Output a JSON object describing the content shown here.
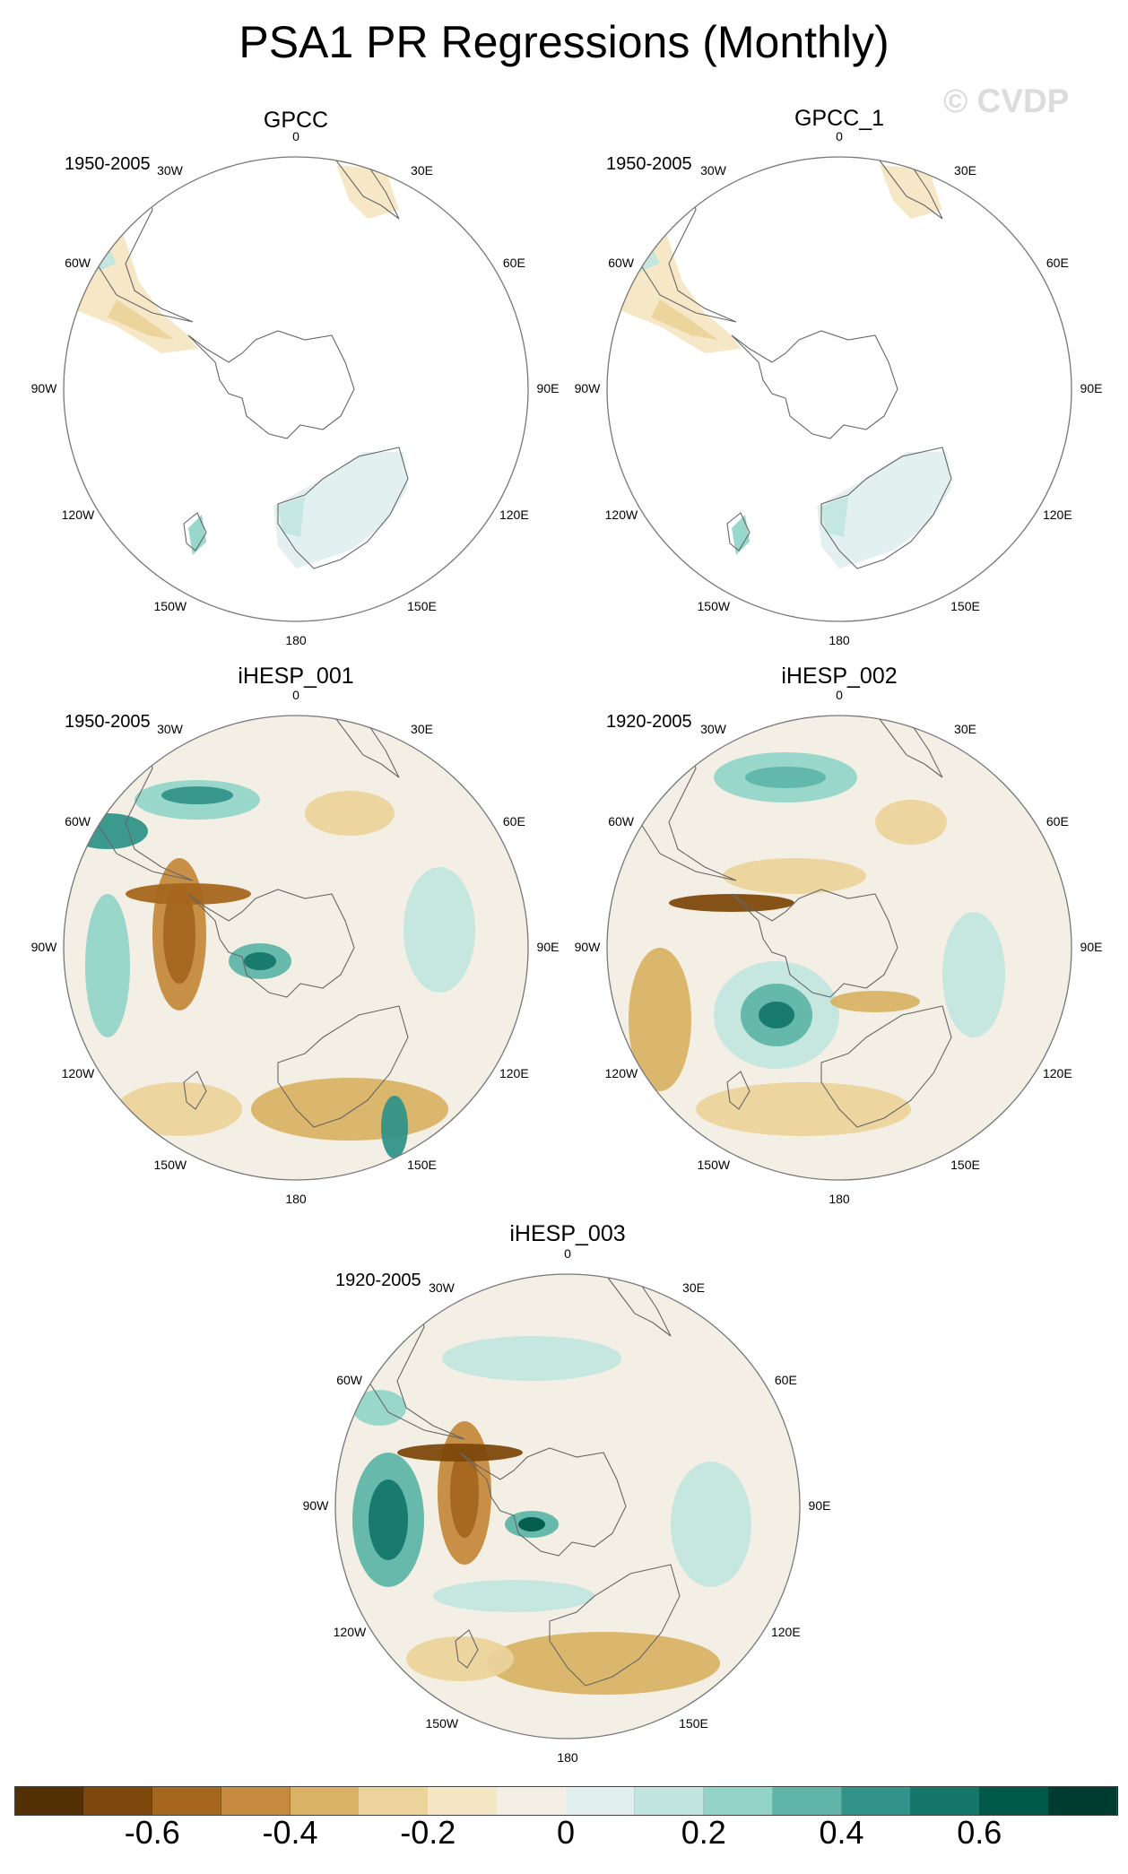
{
  "title": "PSA1 PR Regressions (Monthly)",
  "watermark": "© CVDP",
  "panels": [
    {
      "title": "GPCC",
      "years": "1950-2005"
    },
    {
      "title": "GPCC_1",
      "years": "1950-2005"
    },
    {
      "title": "iHESP_001",
      "years": "1950-2005"
    },
    {
      "title": "iHESP_002",
      "years": "1920-2005"
    },
    {
      "title": "iHESP_003",
      "years": "1920-2005"
    }
  ],
  "longitude_labels": {
    "top": "0",
    "bottom": "180",
    "l30w": "30W",
    "l60w": "60W",
    "l90w": "90W",
    "l120w": "120W",
    "l150w": "150W",
    "l30e": "30E",
    "l60e": "60E",
    "l90e": "90E",
    "l120e": "120E",
    "l150e": "150E"
  },
  "colorbar": {
    "ticks": [
      "-0.6",
      "-0.4",
      "-0.2",
      "0",
      "0.2",
      "0.4",
      "0.6"
    ],
    "colors": [
      "#543005",
      "#7d480c",
      "#a5661d",
      "#c58a3e",
      "#d9b266",
      "#ebd39b",
      "#f5e7c3",
      "#f4efe4",
      "#e2efef",
      "#c2e6df",
      "#92d5c8",
      "#5fb6a8",
      "#319389",
      "#147769",
      "#01594a",
      "#003d30"
    ]
  }
}
